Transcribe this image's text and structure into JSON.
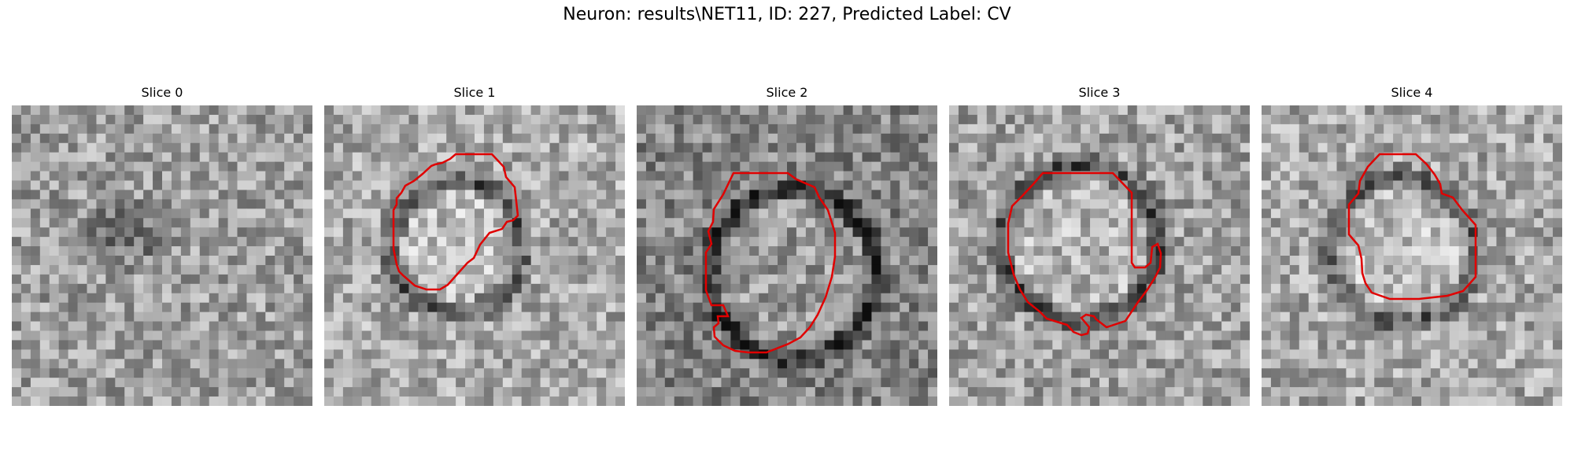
{
  "figure": {
    "title": "Neuron: results\\NET11, ID: 227, Predicted Label: CV"
  },
  "panels": [
    {
      "title": "Slice 0",
      "has_contour": false,
      "contour_color": "#e00000"
    },
    {
      "title": "Slice 1",
      "has_contour": true,
      "contour_color": "#e00000"
    },
    {
      "title": "Slice 2",
      "has_contour": true,
      "contour_color": "#e00000"
    },
    {
      "title": "Slice 3",
      "has_contour": true,
      "contour_color": "#e00000"
    },
    {
      "title": "Slice 4",
      "has_contour": true,
      "contour_color": "#e00000"
    }
  ],
  "colormap": "gray"
}
